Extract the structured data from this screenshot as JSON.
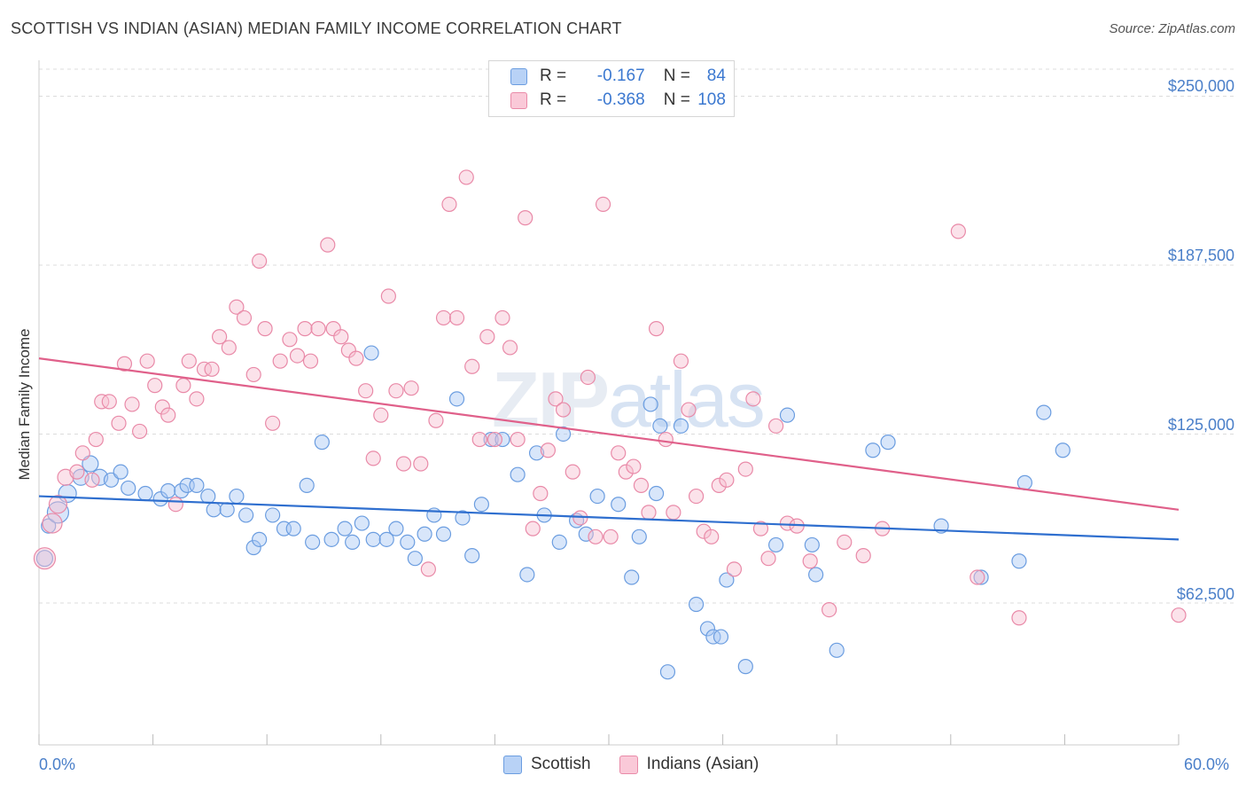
{
  "header": {
    "title": "SCOTTISH VS INDIAN (ASIAN) MEDIAN FAMILY INCOME CORRELATION CHART",
    "source": "Source: ZipAtlas.com"
  },
  "legend": {
    "rows": [
      {
        "r_label": "R =",
        "r_value": "-0.167",
        "n_label": "N =",
        "n_value": "84"
      },
      {
        "r_label": "R =",
        "r_value": "-0.368",
        "n_label": "N =",
        "n_value": "108"
      }
    ]
  },
  "watermark": {
    "zip": "ZIP",
    "atlas": "atlas"
  },
  "colors": {
    "scottish_fill": "#a9c8f3",
    "scottish_stroke": "#6b9de0",
    "scottish_line": "#2f6fcf",
    "indian_fill": "#f7bfd0",
    "indian_stroke": "#e98aa8",
    "indian_line": "#e0608a",
    "axis_label": "#4a7fc9",
    "grid": "#dcdcdc"
  },
  "chart_data": {
    "type": "scatter",
    "title": "SCOTTISH VS INDIAN (ASIAN) MEDIAN FAMILY INCOME CORRELATION CHART",
    "ylabel": "Median Family Income",
    "xlim": [
      0,
      60
    ],
    "ylim": [
      10000,
      260000
    ],
    "x_tick_labels": [
      "0.0%",
      "60.0%"
    ],
    "y_ticks": [
      62500,
      125000,
      187500,
      250000
    ],
    "y_tick_labels": [
      "$62,500",
      "$125,000",
      "$187,500",
      "$250,000"
    ],
    "grid": true,
    "legend_position": "top-center",
    "series": [
      {
        "name": "Scottish",
        "r": -0.167,
        "n": 84,
        "trend": {
          "x": [
            0,
            60
          ],
          "y": [
            102000,
            86000
          ]
        },
        "points": [
          [
            0.5,
            91000,
            8
          ],
          [
            1.0,
            96000,
            12
          ],
          [
            1.5,
            103000,
            10
          ],
          [
            2.2,
            109000,
            9
          ],
          [
            2.7,
            114000,
            9
          ],
          [
            3.2,
            109000,
            9
          ],
          [
            3.8,
            108000,
            8
          ],
          [
            4.3,
            111000,
            8
          ],
          [
            4.7,
            105000,
            8
          ],
          [
            5.6,
            103000,
            8
          ],
          [
            6.4,
            101000,
            8
          ],
          [
            6.8,
            104000,
            8
          ],
          [
            7.5,
            104000,
            8
          ],
          [
            7.8,
            106000,
            8
          ],
          [
            8.3,
            106000,
            8
          ],
          [
            8.9,
            102000,
            8
          ],
          [
            9.2,
            97000,
            8
          ],
          [
            9.9,
            97000,
            8
          ],
          [
            10.4,
            102000,
            8
          ],
          [
            10.9,
            95000,
            8
          ],
          [
            11.3,
            83000,
            8
          ],
          [
            11.6,
            86000,
            8
          ],
          [
            12.3,
            95000,
            8
          ],
          [
            12.9,
            90000,
            8
          ],
          [
            13.4,
            90000,
            8
          ],
          [
            14.1,
            106000,
            8
          ],
          [
            14.4,
            85000,
            8
          ],
          [
            14.9,
            122000,
            8
          ],
          [
            15.4,
            86000,
            8
          ],
          [
            16.1,
            90000,
            8
          ],
          [
            16.5,
            85000,
            8
          ],
          [
            17.0,
            92000,
            8
          ],
          [
            17.5,
            155000,
            8
          ],
          [
            17.6,
            86000,
            8
          ],
          [
            18.3,
            86000,
            8
          ],
          [
            18.8,
            90000,
            8
          ],
          [
            19.4,
            85000,
            8
          ],
          [
            19.8,
            79000,
            8
          ],
          [
            20.3,
            88000,
            8
          ],
          [
            20.8,
            95000,
            8
          ],
          [
            21.3,
            88000,
            8
          ],
          [
            22.0,
            138000,
            8
          ],
          [
            22.3,
            94000,
            8
          ],
          [
            22.8,
            80000,
            8
          ],
          [
            23.3,
            99000,
            8
          ],
          [
            23.8,
            123000,
            8
          ],
          [
            24.4,
            123000,
            8
          ],
          [
            25.2,
            110000,
            8
          ],
          [
            25.7,
            73000,
            8
          ],
          [
            26.2,
            118000,
            8
          ],
          [
            26.6,
            95000,
            8
          ],
          [
            27.4,
            85000,
            8
          ],
          [
            27.6,
            125000,
            8
          ],
          [
            28.3,
            93000,
            8
          ],
          [
            28.8,
            88000,
            8
          ],
          [
            29.4,
            102000,
            8
          ],
          [
            30.5,
            99000,
            8
          ],
          [
            31.2,
            72000,
            8
          ],
          [
            31.6,
            87000,
            8
          ],
          [
            32.2,
            136000,
            8
          ],
          [
            32.5,
            103000,
            8
          ],
          [
            32.7,
            128000,
            8
          ],
          [
            33.1,
            37000,
            8
          ],
          [
            33.8,
            128000,
            8
          ],
          [
            34.6,
            62000,
            8
          ],
          [
            35.2,
            53000,
            8
          ],
          [
            35.5,
            50000,
            8
          ],
          [
            35.9,
            50000,
            8
          ],
          [
            36.2,
            71000,
            8
          ],
          [
            37.2,
            39000,
            8
          ],
          [
            38.8,
            84000,
            8
          ],
          [
            39.4,
            132000,
            8
          ],
          [
            40.7,
            84000,
            8
          ],
          [
            40.9,
            73000,
            8
          ],
          [
            42.0,
            45000,
            8
          ],
          [
            43.9,
            119000,
            8
          ],
          [
            44.7,
            122000,
            8
          ],
          [
            47.5,
            91000,
            8
          ],
          [
            49.6,
            72000,
            8
          ],
          [
            51.6,
            78000,
            8
          ],
          [
            51.9,
            107000,
            8
          ],
          [
            52.9,
            133000,
            8
          ],
          [
            53.9,
            119000,
            8
          ],
          [
            0.3,
            79000,
            9
          ]
        ]
      },
      {
        "name": "Indians (Asian)",
        "r": -0.368,
        "n": 108,
        "trend": {
          "x": [
            0,
            60
          ],
          "y": [
            153000,
            97000
          ]
        },
        "points": [
          [
            0.3,
            79000,
            12
          ],
          [
            0.7,
            92000,
            11
          ],
          [
            1.0,
            99000,
            10
          ],
          [
            1.4,
            109000,
            9
          ],
          [
            2.0,
            111000,
            8
          ],
          [
            2.3,
            118000,
            8
          ],
          [
            2.8,
            108000,
            8
          ],
          [
            3.0,
            123000,
            8
          ],
          [
            3.3,
            137000,
            8
          ],
          [
            3.7,
            137000,
            8
          ],
          [
            4.2,
            129000,
            8
          ],
          [
            4.5,
            151000,
            8
          ],
          [
            4.9,
            136000,
            8
          ],
          [
            5.3,
            126000,
            8
          ],
          [
            5.7,
            152000,
            8
          ],
          [
            6.1,
            143000,
            8
          ],
          [
            6.5,
            135000,
            8
          ],
          [
            6.8,
            132000,
            8
          ],
          [
            7.2,
            99000,
            8
          ],
          [
            7.6,
            143000,
            8
          ],
          [
            7.9,
            152000,
            8
          ],
          [
            8.3,
            138000,
            8
          ],
          [
            8.7,
            149000,
            8
          ],
          [
            9.1,
            149000,
            8
          ],
          [
            9.5,
            161000,
            8
          ],
          [
            10.0,
            157000,
            8
          ],
          [
            10.4,
            172000,
            8
          ],
          [
            10.8,
            168000,
            8
          ],
          [
            11.3,
            147000,
            8
          ],
          [
            11.6,
            189000,
            8
          ],
          [
            11.9,
            164000,
            8
          ],
          [
            12.3,
            129000,
            8
          ],
          [
            12.7,
            152000,
            8
          ],
          [
            13.2,
            160000,
            8
          ],
          [
            13.6,
            154000,
            8
          ],
          [
            14.0,
            164000,
            8
          ],
          [
            14.3,
            152000,
            8
          ],
          [
            14.7,
            164000,
            8
          ],
          [
            15.2,
            195000,
            8
          ],
          [
            15.5,
            164000,
            8
          ],
          [
            15.9,
            161000,
            8
          ],
          [
            16.3,
            156000,
            8
          ],
          [
            16.7,
            153000,
            8
          ],
          [
            17.2,
            141000,
            8
          ],
          [
            17.6,
            116000,
            8
          ],
          [
            18.0,
            132000,
            8
          ],
          [
            18.4,
            176000,
            8
          ],
          [
            18.8,
            141000,
            8
          ],
          [
            19.2,
            114000,
            8
          ],
          [
            19.6,
            142000,
            8
          ],
          [
            20.1,
            114000,
            8
          ],
          [
            20.5,
            75000,
            8
          ],
          [
            20.9,
            130000,
            8
          ],
          [
            21.3,
            168000,
            8
          ],
          [
            21.6,
            210000,
            8
          ],
          [
            22.0,
            168000,
            8
          ],
          [
            22.5,
            220000,
            8
          ],
          [
            22.8,
            150000,
            8
          ],
          [
            23.2,
            123000,
            8
          ],
          [
            23.6,
            161000,
            8
          ],
          [
            24.0,
            123000,
            8
          ],
          [
            24.4,
            168000,
            8
          ],
          [
            24.8,
            157000,
            8
          ],
          [
            25.2,
            123000,
            8
          ],
          [
            25.6,
            205000,
            8
          ],
          [
            26.0,
            90000,
            8
          ],
          [
            26.4,
            103000,
            8
          ],
          [
            26.8,
            119000,
            8
          ],
          [
            27.2,
            138000,
            8
          ],
          [
            27.6,
            134000,
            8
          ],
          [
            28.1,
            111000,
            8
          ],
          [
            28.5,
            94000,
            8
          ],
          [
            28.9,
            146000,
            8
          ],
          [
            29.3,
            87000,
            8
          ],
          [
            29.7,
            210000,
            8
          ],
          [
            30.1,
            87000,
            8
          ],
          [
            30.5,
            118000,
            8
          ],
          [
            30.9,
            111000,
            8
          ],
          [
            31.3,
            113000,
            8
          ],
          [
            31.7,
            106000,
            8
          ],
          [
            32.1,
            96000,
            8
          ],
          [
            32.5,
            164000,
            8
          ],
          [
            33.0,
            123000,
            8
          ],
          [
            33.4,
            96000,
            8
          ],
          [
            33.8,
            152000,
            8
          ],
          [
            34.2,
            134000,
            8
          ],
          [
            34.6,
            102000,
            8
          ],
          [
            35.0,
            89000,
            8
          ],
          [
            35.4,
            87000,
            8
          ],
          [
            35.8,
            106000,
            8
          ],
          [
            36.2,
            108000,
            8
          ],
          [
            36.6,
            75000,
            8
          ],
          [
            37.2,
            112000,
            8
          ],
          [
            37.6,
            138000,
            8
          ],
          [
            38.0,
            90000,
            8
          ],
          [
            38.4,
            79000,
            8
          ],
          [
            38.8,
            128000,
            8
          ],
          [
            39.4,
            92000,
            8
          ],
          [
            39.9,
            91000,
            8
          ],
          [
            40.6,
            78000,
            8
          ],
          [
            41.6,
            60000,
            8
          ],
          [
            42.4,
            85000,
            8
          ],
          [
            43.4,
            80000,
            8
          ],
          [
            44.4,
            90000,
            8
          ],
          [
            48.4,
            200000,
            8
          ],
          [
            49.4,
            72000,
            8
          ],
          [
            51.6,
            57000,
            8
          ],
          [
            60.0,
            58000,
            8
          ]
        ]
      }
    ]
  }
}
